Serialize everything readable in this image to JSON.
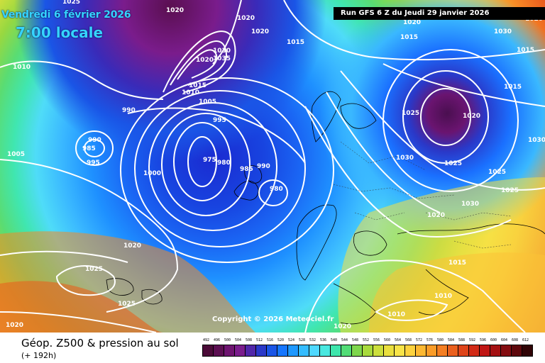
{
  "header": {
    "date": "Vendredi 6 février 2026",
    "time": "7:00 locale",
    "run": "Run GFS 6 Z du Jeudi 29 janvier 2026"
  },
  "copyright": "Copyright © 2026 Meteociel.fr",
  "footer": {
    "title": "Géop. Z500 & pression au sol",
    "subtitle": "(+ 192h)"
  },
  "legend": {
    "values": [
      "492",
      "496",
      "500",
      "504",
      "508",
      "512",
      "516",
      "520",
      "524",
      "528",
      "532",
      "536",
      "540",
      "544",
      "548",
      "552",
      "556",
      "560",
      "564",
      "568",
      "572",
      "576",
      "580",
      "584",
      "588",
      "592",
      "596",
      "600",
      "604",
      "608",
      "612"
    ],
    "colors": [
      "#4b0b38",
      "#5c0f52",
      "#6e1470",
      "#7a1c8c",
      "#5026a8",
      "#2a38c8",
      "#1a55e6",
      "#1676ff",
      "#1e98ff",
      "#34bcff",
      "#4ed8ff",
      "#48e8e0",
      "#3ee6ac",
      "#52dc76",
      "#7ed64c",
      "#a8da3c",
      "#ccdf3c",
      "#eadf3e",
      "#f8e448",
      "#fcd23e",
      "#fcb832",
      "#fa9c28",
      "#f47e22",
      "#ea601e",
      "#de441a",
      "#d22a16",
      "#c01614",
      "#a41012",
      "#840c10",
      "#5e080c",
      "#300406"
    ]
  },
  "isobars": [
    {
      "text": "1025",
      "id": "1"
    },
    {
      "text": "1020",
      "id": "2"
    },
    {
      "text": "1020",
      "id": "3"
    },
    {
      "text": "1020",
      "id": "4"
    },
    {
      "text": "1010",
      "id": "5"
    },
    {
      "text": "1030",
      "id": "6"
    },
    {
      "text": "1035",
      "id": "7"
    },
    {
      "text": "1020",
      "id": "8"
    },
    {
      "text": "1015",
      "id": "9"
    },
    {
      "text": "1010",
      "id": "10"
    },
    {
      "text": "1005",
      "id": "11"
    },
    {
      "text": "990",
      "id": "12"
    },
    {
      "text": "995",
      "id": "13"
    },
    {
      "text": "990",
      "id": "14"
    },
    {
      "text": "985",
      "id": "15"
    },
    {
      "text": "995",
      "id": "16"
    },
    {
      "text": "1005",
      "id": "17"
    },
    {
      "text": "1000",
      "id": "18"
    },
    {
      "text": "975",
      "id": "19"
    },
    {
      "text": "980",
      "id": "20"
    },
    {
      "text": "985",
      "id": "21"
    },
    {
      "text": "990",
      "id": "22"
    },
    {
      "text": "980",
      "id": "23"
    },
    {
      "text": "1015",
      "id": "24"
    },
    {
      "text": "1020",
      "id": "25"
    },
    {
      "text": "1015",
      "id": "26"
    },
    {
      "text": "1025",
      "id": "27"
    },
    {
      "text": "1020",
      "id": "28"
    },
    {
      "text": "1015",
      "id": "29"
    },
    {
      "text": "1030",
      "id": "30"
    },
    {
      "text": "1025",
      "id": "31"
    },
    {
      "text": "1030",
      "id": "32"
    },
    {
      "text": "1025",
      "id": "33"
    },
    {
      "text": "1030",
      "id": "34"
    },
    {
      "text": "1020",
      "id": "35"
    },
    {
      "text": "1020",
      "id": "36"
    },
    {
      "text": "1025",
      "id": "37"
    },
    {
      "text": "1025",
      "id": "38"
    },
    {
      "text": "1015",
      "id": "39"
    },
    {
      "text": "1010",
      "id": "40"
    },
    {
      "text": "1010",
      "id": "41"
    },
    {
      "text": "1020",
      "id": "42"
    },
    {
      "text": "1020",
      "id": "43"
    },
    {
      "text": "1030",
      "id": "44"
    },
    {
      "text": "1020",
      "id": "45"
    },
    {
      "text": "1025",
      "id": "46"
    },
    {
      "text": "1015",
      "id": "47"
    }
  ]
}
